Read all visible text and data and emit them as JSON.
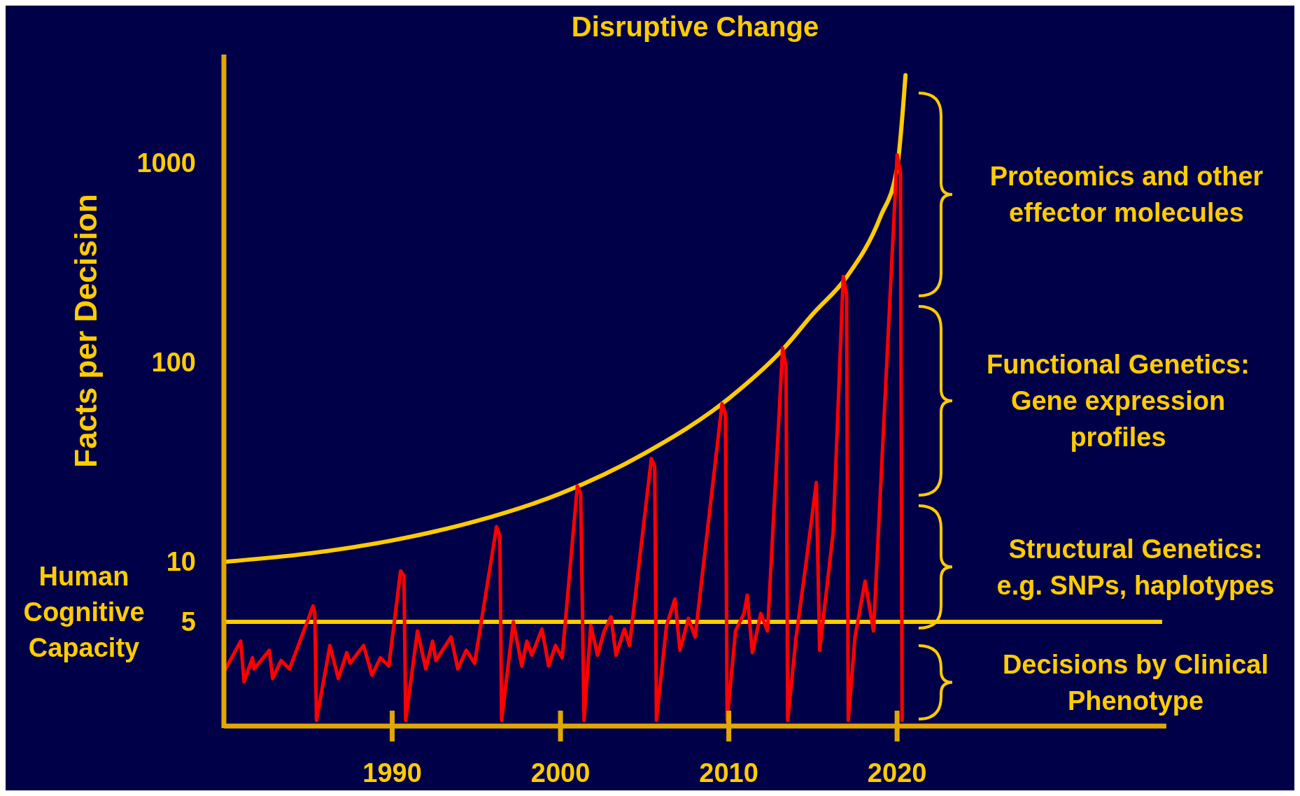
{
  "chart_data": {
    "type": "line",
    "title": "Disruptive Change",
    "ylabel": "Facts per Decision",
    "log": "y",
    "xlim": [
      1980,
      2036
    ],
    "xticks": [
      1990,
      2000,
      2010,
      2020
    ],
    "ylim": [
      1.5,
      3500
    ],
    "yticks": [
      5,
      10,
      100,
      1000
    ],
    "grid": false,
    "line_style": "solid",
    "series": [
      {
        "color": "#ffcc00",
        "x": [
          1980,
          1985,
          1990,
          1995,
          2000,
          2005,
          2010,
          2013.2,
          2015,
          2017,
          2019,
          2020,
          2020.5
        ],
        "values": [
          10,
          11,
          12.8,
          16,
          22,
          35,
          66,
          116,
          175,
          268,
          535,
          946,
          2760
        ]
      },
      {
        "color": "#ff0000",
        "x": [
          1980,
          1981,
          1981.2,
          1981.7,
          1981.8,
          1982.7,
          1982.9,
          1983.4,
          1983.9,
          1985.3,
          1985.4,
          1985.5,
          1986.3,
          1986.8,
          1987.3,
          1987.5,
          1988.3,
          1988.8,
          1989.3,
          1989.8,
          1990.5,
          1990.7,
          1990.8,
          1991.5,
          1992,
          1992.4,
          1992.6,
          1993.5,
          1993.9,
          1994.4,
          1994.9,
          1996.2,
          1996.4,
          1996.5,
          1997.2,
          1997.7,
          1998,
          1998.3,
          1998.9,
          1999.3,
          1999.7,
          2000.1,
          2001,
          2001.2,
          2001.4,
          2001.8,
          2002.2,
          2002.6,
          2003,
          2003.3,
          2003.8,
          2004.1,
          2005.4,
          2005.6,
          2005.7,
          2006.3,
          2006.8,
          2007.1,
          2007.6,
          2008,
          2009.6,
          2009.8,
          2009.9,
          2010.4,
          2010.9,
          2011.1,
          2011.4,
          2011.9,
          2012.3,
          2013.2,
          2013.4,
          2013.5,
          2014,
          2014.6,
          2015.2,
          2015.4,
          2016.2,
          2016.8,
          2017,
          2017.1,
          2017.5,
          2018.1,
          2018.6,
          2020,
          2020.2,
          2020.3
        ],
        "values": [
          2.8,
          4,
          2.5,
          3.3,
          2.9,
          3.6,
          2.6,
          3.2,
          2.9,
          6,
          5.6,
          1.6,
          3.8,
          2.6,
          3.5,
          3.1,
          3.8,
          2.7,
          3.3,
          3,
          9,
          8.5,
          1.6,
          4.5,
          2.9,
          4,
          3.2,
          4.2,
          2.9,
          3.6,
          3.1,
          15,
          13.5,
          1.6,
          5,
          3,
          4,
          3.4,
          4.6,
          3,
          3.8,
          3.3,
          24,
          22,
          1.6,
          4.8,
          3.4,
          4.5,
          5.3,
          3.4,
          4.6,
          3.8,
          33,
          30,
          1.6,
          4.8,
          6.5,
          3.6,
          5.2,
          4.2,
          62,
          55,
          1.6,
          4.5,
          5.5,
          6.8,
          3.5,
          5.5,
          4.5,
          118,
          95,
          1.6,
          4.2,
          10,
          25,
          3.6,
          14,
          270,
          220,
          1.6,
          4.2,
          8,
          4.5,
          1100,
          900,
          1.6
        ]
      }
    ],
    "ref_lines": [
      {
        "axis": "y",
        "value": 5,
        "label": "Human Cognitive Capacity",
        "color": "#ffcc00"
      }
    ],
    "annotations": [
      "Proteomics and other\neffector molecules",
      "Functional Genetics:\nGene expression\nprofiles",
      "Structural Genetics:\ne.g. SNPs, haplotypes",
      "Decisions by Clinical\nPhenotype"
    ]
  }
}
